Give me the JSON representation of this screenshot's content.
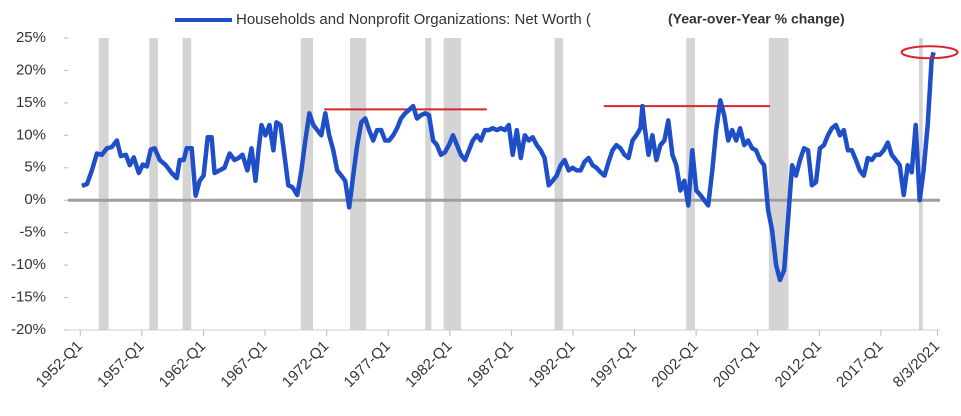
{
  "chart_data": {
    "type": "line",
    "subtitle": "(Year-over-Year % change)",
    "series": [
      {
        "name": "Households and Nonprofit Organizations: Net Worth (",
        "color": "#1f4fc8",
        "x": [
          1952.13,
          1952.54,
          1952.94,
          1953.35,
          1953.75,
          1954.16,
          1954.56,
          1954.97,
          1955.29,
          1955.7,
          1956.02,
          1956.34,
          1956.75,
          1957.07,
          1957.4,
          1957.72,
          1958.04,
          1958.45,
          1958.94,
          1959.42,
          1959.83,
          1960.07,
          1960.39,
          1960.64,
          1961.04,
          1961.36,
          1961.69,
          1962.01,
          1962.34,
          1962.66,
          1962.9,
          1963.31,
          1963.71,
          1964.12,
          1964.52,
          1964.85,
          1965.17,
          1965.57,
          1965.9,
          1966.22,
          1966.47,
          1966.71,
          1967.03,
          1967.36,
          1967.68,
          1967.92,
          1968.25,
          1968.57,
          1968.89,
          1969.22,
          1969.62,
          1969.95,
          1970.27,
          1970.6,
          1970.92,
          1971.24,
          1971.57,
          1971.89,
          1972.21,
          1972.54,
          1972.86,
          1973.19,
          1973.51,
          1973.83,
          1974.16,
          1974.48,
          1974.81,
          1975.13,
          1975.45,
          1975.78,
          1976.1,
          1976.43,
          1976.75,
          1977.07,
          1977.4,
          1977.72,
          1978.04,
          1978.37,
          1978.69,
          1979.02,
          1979.34,
          1979.66,
          1979.99,
          1980.31,
          1980.64,
          1980.96,
          1981.28,
          1981.61,
          1981.93,
          1982.26,
          1982.58,
          1982.9,
          1983.23,
          1983.55,
          1983.87,
          1984.2,
          1984.52,
          1984.85,
          1985.17,
          1985.49,
          1985.82,
          1986.14,
          1986.47,
          1986.79,
          1987.11,
          1987.44,
          1987.76,
          1988.09,
          1988.41,
          1988.73,
          1989.06,
          1989.38,
          1989.7,
          1990.03,
          1990.35,
          1990.68,
          1991.0,
          1991.32,
          1991.65,
          1991.97,
          1992.3,
          1992.62,
          1992.94,
          1993.27,
          1993.59,
          1993.91,
          1994.24,
          1994.56,
          1994.89,
          1995.21,
          1995.53,
          1995.86,
          1996.18,
          1996.51,
          1996.83,
          1997.15,
          1997.48,
          1997.64,
          1997.8,
          1998.13,
          1998.45,
          1998.77,
          1999.1,
          1999.42,
          1999.74,
          2000.07,
          2000.39,
          2000.72,
          2001.04,
          2001.36,
          2001.69,
          2002.01,
          2002.34,
          2002.66,
          2002.98,
          2003.31,
          2003.63,
          2003.96,
          2004.28,
          2004.6,
          2004.93,
          2005.25,
          2005.57,
          2005.9,
          2006.22,
          2006.55,
          2006.87,
          2007.19,
          2007.52,
          2007.84,
          2008.17,
          2008.49,
          2008.81,
          2009.14,
          2009.46,
          2009.79,
          2010.11,
          2010.43,
          2010.76,
          2011.08,
          2011.4,
          2011.73,
          2012.05,
          2012.38,
          2012.7,
          2013.02,
          2013.35,
          2013.67,
          2013.99,
          2014.32,
          2014.64,
          2014.97,
          2015.29,
          2015.61,
          2015.94,
          2016.26,
          2016.59,
          2016.91,
          2017.23,
          2017.56,
          2017.88,
          2018.21,
          2018.53,
          2018.85,
          2019.18,
          2019.5,
          2019.83,
          2020.15,
          2020.47,
          2020.8,
          2021.12,
          2021.28
        ],
        "values": [
          2.2,
          2.5,
          4.6,
          7.2,
          7,
          8,
          8.2,
          9.2,
          6.8,
          7,
          5.4,
          6.6,
          4.2,
          5.5,
          5.2,
          7.8,
          8,
          6.2,
          5.4,
          4.2,
          3.4,
          6.2,
          6.2,
          8,
          8,
          0.7,
          3,
          3.8,
          9.7,
          9.7,
          4.2,
          4.6,
          5,
          7.2,
          6.2,
          6.5,
          7,
          4.6,
          8,
          3,
          7.7,
          11.6,
          10,
          11.6,
          7.7,
          12,
          11.6,
          7,
          2.3,
          2,
          0.8,
          4.6,
          9.2,
          13.4,
          11.6,
          10.8,
          10,
          13.4,
          10,
          7.7,
          4.6,
          3.8,
          3,
          -1.1,
          3.8,
          8.5,
          12,
          12.6,
          10.8,
          9.2,
          10.8,
          10.8,
          9.2,
          9.2,
          10,
          11.1,
          12.6,
          13.4,
          13.9,
          14.5,
          12.6,
          13.1,
          13.4,
          13.1,
          9.2,
          8.5,
          7,
          7.4,
          8.5,
          10,
          8.5,
          7,
          6.2,
          7.7,
          9.2,
          10,
          9.2,
          10.8,
          10.8,
          11.1,
          10.8,
          11.1,
          10.8,
          11.6,
          7,
          10.8,
          6.5,
          10,
          9.2,
          9.7,
          8.5,
          7.7,
          6.5,
          2.3,
          3,
          3.8,
          5.4,
          6.2,
          4.6,
          5,
          4.6,
          4.6,
          5.9,
          6.5,
          5.4,
          5,
          4.3,
          3.8,
          5.9,
          7.7,
          8.5,
          8,
          7,
          6.5,
          9.2,
          10,
          11.1,
          14.5,
          11.6,
          7,
          10,
          6.2,
          8.5,
          9.2,
          12.3,
          7,
          5.4,
          1.5,
          3,
          -0.8,
          7.7,
          1.5,
          0.8,
          0,
          -0.8,
          4.6,
          10.8,
          15.4,
          13.1,
          9.2,
          10.8,
          9.2,
          11.1,
          8.5,
          9.2,
          8,
          7.7,
          6.2,
          5.4,
          -1.5,
          -4.6,
          -10,
          -12.3,
          -10.8,
          -3.1,
          5.4,
          3.8,
          6.2,
          8,
          7.7,
          2.3,
          2.8,
          8,
          8.5,
          10,
          11.1,
          11.6,
          10,
          10.8,
          7.7,
          7.7,
          6.2,
          4.6,
          3.8,
          6.5,
          6.2,
          7,
          7,
          7.7,
          8.9,
          7,
          6.2,
          5.4,
          0.8,
          5.4,
          4.3,
          11.6,
          0,
          4.6,
          11.6,
          21.6,
          22.8
        ]
      }
    ],
    "recessions": [
      [
        1953.5,
        1954.3
      ],
      [
        1957.6,
        1958.3
      ],
      [
        1960.3,
        1961.0
      ],
      [
        1969.9,
        1970.9
      ],
      [
        1973.9,
        1975.2
      ],
      [
        1980.0,
        1980.5
      ],
      [
        1981.5,
        1982.9
      ],
      [
        1990.5,
        1991.2
      ],
      [
        2001.2,
        2001.9
      ],
      [
        2007.9,
        2009.5
      ],
      [
        2020.1,
        2020.4
      ]
    ],
    "recession_color": "#d4d4d4",
    "reference_lines": [
      {
        "x": [
          1971.8,
          1985.0
        ],
        "y": 14
      },
      {
        "x": [
          1994.5,
          2008.0
        ],
        "y": 14.5
      }
    ],
    "reference_color": "#d9262e",
    "xlim": [
      1951,
      2021.8
    ],
    "xticks": [
      {
        "value": 1952,
        "label": "1952-Q1"
      },
      {
        "value": 1957,
        "label": "1957-Q1"
      },
      {
        "value": 1962,
        "label": "1962-Q1"
      },
      {
        "value": 1967,
        "label": "1967-Q1"
      },
      {
        "value": 1972,
        "label": "1972-Q1"
      },
      {
        "value": 1977,
        "label": "1977-Q1"
      },
      {
        "value": 1982,
        "label": "1982-Q1"
      },
      {
        "value": 1987,
        "label": "1987-Q1"
      },
      {
        "value": 1992,
        "label": "1992-Q1"
      },
      {
        "value": 1997,
        "label": "1997-Q1"
      },
      {
        "value": 2002,
        "label": "2002-Q1"
      },
      {
        "value": 2007,
        "label": "2007-Q1"
      },
      {
        "value": 2012,
        "label": "2012-Q1"
      },
      {
        "value": 2017,
        "label": "2017-Q1"
      },
      {
        "value": 2021.59,
        "label": "8/3/2021"
      }
    ],
    "ylim": [
      -20,
      25
    ],
    "yticks": [
      {
        "value": -20,
        "label": "-20%"
      },
      {
        "value": -15,
        "label": "-15%"
      },
      {
        "value": -10,
        "label": "-10%"
      },
      {
        "value": -5,
        "label": "-5%"
      },
      {
        "value": 0,
        "label": "0%"
      },
      {
        "value": 5,
        "label": "5%"
      },
      {
        "value": 10,
        "label": "10%"
      },
      {
        "value": 15,
        "label": "15%"
      },
      {
        "value": 20,
        "label": "20%"
      },
      {
        "value": 25,
        "label": "25%"
      }
    ]
  }
}
